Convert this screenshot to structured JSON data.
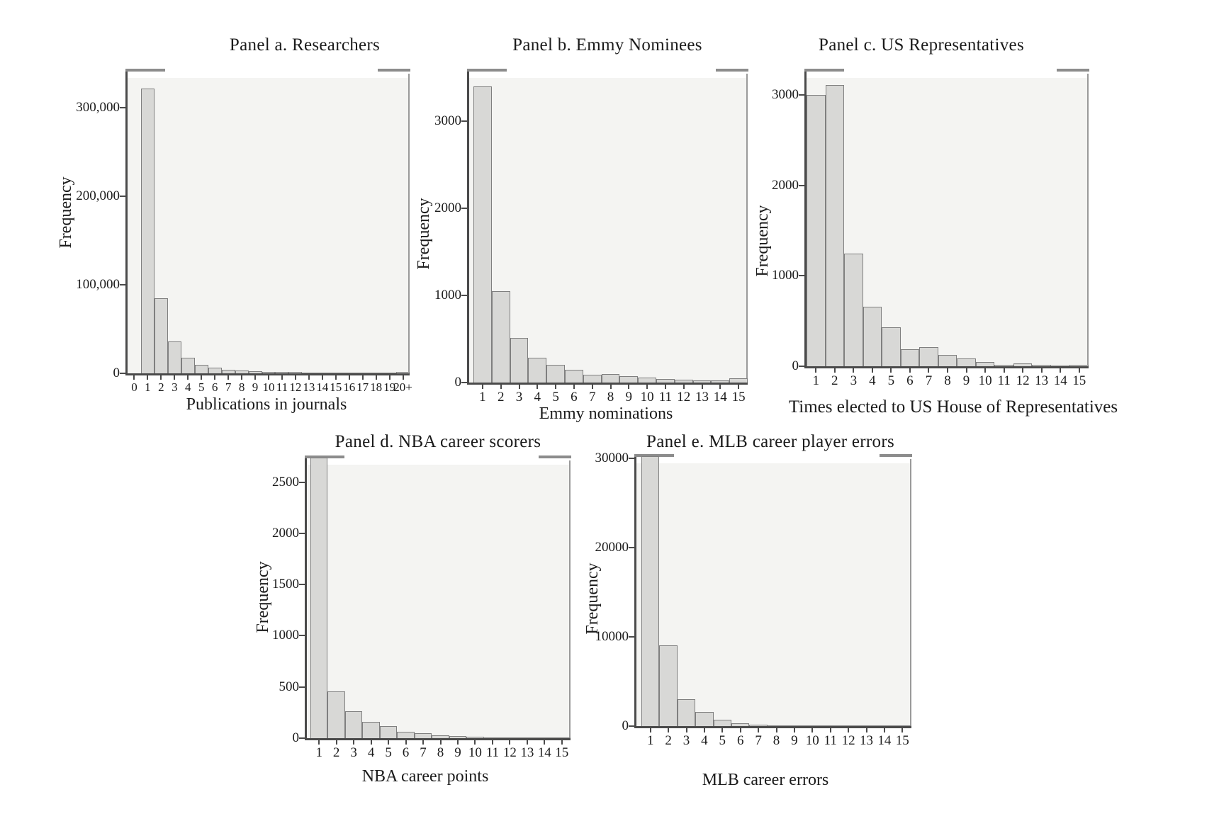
{
  "figure": {
    "background": "#ffffff",
    "text_color": "#1b1b1b",
    "axis_color": "#4a4a4a",
    "bar_fill": "#d8d8d6",
    "bar_border": "#7f7f7f",
    "plot_background": "#f4f4f2"
  },
  "chart_data": [
    {
      "type": "bar",
      "title": "Panel a. Researchers",
      "xlabel": "Publications in journals",
      "ylabel": "Frequency",
      "grid": false,
      "legend": false,
      "categories": [
        "0",
        "1",
        "2",
        "3",
        "4",
        "5",
        "6",
        "7",
        "8",
        "9",
        "10",
        "11",
        "12",
        "13",
        "14",
        "15",
        "16",
        "17",
        "18",
        "19",
        "20+"
      ],
      "values": [
        0,
        322000,
        85000,
        36000,
        18000,
        10000,
        6500,
        4200,
        3000,
        2300,
        1800,
        1500,
        1300,
        1100,
        1000,
        900,
        850,
        800,
        750,
        700,
        1400
      ],
      "yticks": [
        {
          "label": "0",
          "value": 0
        },
        {
          "label": "100,000",
          "value": 100000
        },
        {
          "label": "200,000",
          "value": 200000
        },
        {
          "label": "300,000",
          "value": 300000
        }
      ],
      "ylim": [
        0,
        342000
      ]
    },
    {
      "type": "bar",
      "title": "Panel b. Emmy Nominees",
      "xlabel": "Emmy nominations",
      "ylabel": "Frequency",
      "grid": false,
      "legend": false,
      "categories": [
        "1",
        "2",
        "3",
        "4",
        "5",
        "6",
        "7",
        "8",
        "9",
        "10",
        "11",
        "12",
        "13",
        "14",
        "15"
      ],
      "values": [
        3400,
        1050,
        510,
        285,
        200,
        150,
        90,
        100,
        70,
        55,
        40,
        30,
        28,
        25,
        45
      ],
      "yticks": [
        {
          "label": "0",
          "value": 0
        },
        {
          "label": "1000",
          "value": 1000
        },
        {
          "label": "2000",
          "value": 2000
        },
        {
          "label": "3000",
          "value": 3000
        }
      ],
      "ylim": [
        0,
        3580
      ]
    },
    {
      "type": "bar",
      "title": "Panel c. US Representatives",
      "xlabel": "Times elected to US House of Representatives",
      "ylabel": "Frequency",
      "grid": false,
      "legend": false,
      "categories": [
        "1",
        "2",
        "3",
        "4",
        "5",
        "6",
        "7",
        "8",
        "9",
        "10",
        "11",
        "12",
        "13",
        "14",
        "15"
      ],
      "values": [
        3000,
        3110,
        1250,
        655,
        430,
        185,
        210,
        125,
        85,
        48,
        18,
        30,
        12,
        10,
        12
      ],
      "yticks": [
        {
          "label": "0",
          "value": 0
        },
        {
          "label": "1000",
          "value": 1000
        },
        {
          "label": "2000",
          "value": 2000
        },
        {
          "label": "3000",
          "value": 3000
        }
      ],
      "ylim": [
        0,
        3270
      ]
    },
    {
      "type": "bar",
      "title": "Panel d. NBA career scorers",
      "xlabel": "NBA career points",
      "ylabel": "Frequency",
      "grid": false,
      "legend": false,
      "categories": [
        "1",
        "2",
        "3",
        "4",
        "5",
        "6",
        "7",
        "8",
        "9",
        "10",
        "11",
        "12",
        "13",
        "14",
        "15"
      ],
      "values": [
        2750,
        455,
        265,
        160,
        120,
        63,
        50,
        28,
        18,
        12,
        10,
        6,
        5,
        4,
        3
      ],
      "yticks": [
        {
          "label": "0",
          "value": 0
        },
        {
          "label": "500",
          "value": 500
        },
        {
          "label": "1000",
          "value": 1000
        },
        {
          "label": "1500",
          "value": 1500
        },
        {
          "label": "2000",
          "value": 2000
        },
        {
          "label": "2500",
          "value": 2500
        }
      ],
      "ylim": [
        0,
        2740
      ]
    },
    {
      "type": "bar",
      "title": "Panel e. MLB career player errors",
      "xlabel": "MLB career errors",
      "ylabel": "Frequency",
      "grid": false,
      "legend": false,
      "categories": [
        "1",
        "2",
        "3",
        "4",
        "5",
        "6",
        "7",
        "8",
        "9",
        "10",
        "11",
        "12",
        "13",
        "14",
        "15"
      ],
      "values": [
        30500,
        9000,
        3000,
        1550,
        700,
        350,
        180,
        120,
        90,
        70,
        60,
        50,
        45,
        40,
        35
      ],
      "yticks": [
        {
          "label": "0",
          "value": 0
        },
        {
          "label": "10000",
          "value": 10000
        },
        {
          "label": "20000",
          "value": 20000
        },
        {
          "label": "30000",
          "value": 30000
        }
      ],
      "ylim": [
        0,
        30200
      ]
    }
  ]
}
